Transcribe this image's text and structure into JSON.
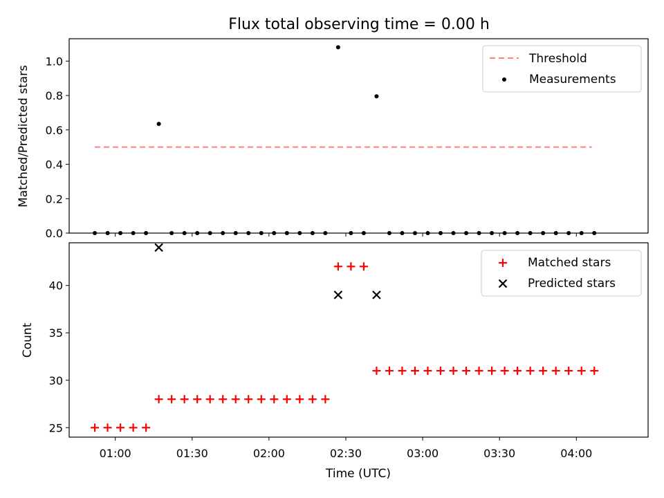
{
  "chart_data": [
    {
      "type": "scatter",
      "title": "Flux total observing time = 0.00 h",
      "ylabel": "Matched/Predicted stars",
      "xlim": [
        "00:42",
        "04:28"
      ],
      "ylim": [
        0,
        1.13
      ],
      "yticks": [
        0.0,
        0.2,
        0.4,
        0.6,
        0.8,
        1.0
      ],
      "xticks": [
        "01:00",
        "01:30",
        "02:00",
        "02:30",
        "03:00",
        "03:30",
        "04:00"
      ],
      "legend_position": "upper right",
      "threshold": {
        "name": "Threshold",
        "value": 0.5,
        "x_start": "00:52",
        "x_end": "04:06",
        "color": "#ff7f7f",
        "style": "dashed"
      },
      "series": [
        {
          "name": "Measurements",
          "color": "#000000",
          "marker": "dot",
          "x": [
            "00:52",
            "00:57",
            "01:02",
            "01:07",
            "01:12",
            "01:17",
            "01:22",
            "01:27",
            "01:32",
            "01:37",
            "01:42",
            "01:47",
            "01:52",
            "01:57",
            "02:02",
            "02:07",
            "02:12",
            "02:17",
            "02:22",
            "02:27",
            "02:32",
            "02:37",
            "02:42",
            "02:47",
            "02:52",
            "02:57",
            "03:02",
            "03:07",
            "03:12",
            "03:17",
            "03:22",
            "03:27",
            "03:32",
            "03:37",
            "03:42",
            "03:47",
            "03:52",
            "03:57",
            "04:02",
            "04:07"
          ],
          "y": [
            0,
            0,
            0,
            0,
            0,
            0.635,
            0,
            0,
            0,
            0,
            0,
            0,
            0,
            0,
            0,
            0,
            0,
            0,
            0,
            1.08,
            0,
            0,
            0.795,
            0,
            0,
            0,
            0,
            0,
            0,
            0,
            0,
            0,
            0,
            0,
            0,
            0,
            0,
            0,
            0,
            0
          ]
        }
      ]
    },
    {
      "type": "scatter",
      "xlabel": "Time (UTC)",
      "ylabel": "Count",
      "xlim": [
        "00:42",
        "04:28"
      ],
      "ylim": [
        24,
        44.5
      ],
      "yticks": [
        25,
        30,
        35,
        40
      ],
      "xticks": [
        "01:00",
        "01:30",
        "02:00",
        "02:30",
        "03:00",
        "03:30",
        "04:00"
      ],
      "legend_position": "upper right",
      "series": [
        {
          "name": "Matched stars",
          "color": "#ff0000",
          "marker": "plus",
          "x": [
            "00:52",
            "00:57",
            "01:02",
            "01:07",
            "01:12",
            "01:17",
            "01:22",
            "01:27",
            "01:32",
            "01:37",
            "01:42",
            "01:47",
            "01:52",
            "01:57",
            "02:02",
            "02:07",
            "02:12",
            "02:17",
            "02:22",
            "02:27",
            "02:32",
            "02:37",
            "02:42",
            "02:47",
            "02:52",
            "02:57",
            "03:02",
            "03:07",
            "03:12",
            "03:17",
            "03:22",
            "03:27",
            "03:32",
            "03:37",
            "03:42",
            "03:47",
            "03:52",
            "03:57",
            "04:02",
            "04:07"
          ],
          "y": [
            25,
            25,
            25,
            25,
            25,
            28,
            28,
            28,
            28,
            28,
            28,
            28,
            28,
            28,
            28,
            28,
            28,
            28,
            28,
            42,
            42,
            42,
            31,
            31,
            31,
            31,
            31,
            31,
            31,
            31,
            31,
            31,
            31,
            31,
            31,
            31,
            31,
            31,
            31,
            31
          ]
        },
        {
          "name": "Predicted stars",
          "color": "#000000",
          "marker": "x",
          "x": [
            "01:17",
            "02:27",
            "02:42"
          ],
          "y": [
            44,
            39,
            39
          ]
        }
      ]
    }
  ]
}
